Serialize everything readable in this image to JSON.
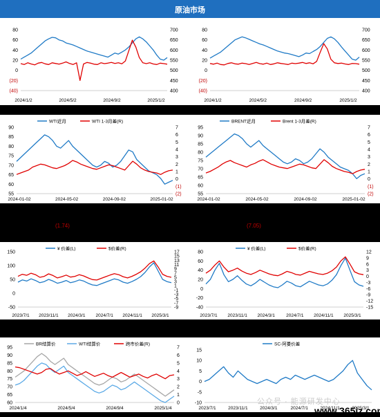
{
  "header": {
    "title": "原油市场"
  },
  "notes": [
    {
      "text": "(1.74)",
      "color": "#c00000"
    },
    {
      "text": "(7.05)",
      "color": "#c00000"
    }
  ],
  "watermark": {
    "text": "公众号 · 能源研发中心",
    "site": "www.365jz.com"
  },
  "chart_data": [
    {
      "id": "c1",
      "type": "line",
      "title": "",
      "x_ticks": [
        "2024/1/2",
        "2024/5/2",
        "2024/9/2",
        "2025/1/2"
      ],
      "ylim": [
        -40,
        80
      ],
      "y_ticks": [
        "80",
        "60",
        "40",
        "20",
        "0",
        "(20)",
        "(40)"
      ],
      "y2lim": [
        350,
        700
      ],
      "y2_ticks": [
        "700",
        "650",
        "600",
        "550",
        "500",
        "450",
        "400"
      ],
      "series": [
        {
          "name": "",
          "color": "#1f7ac6",
          "axis": "left",
          "values": [
            22,
            26,
            30,
            34,
            40,
            46,
            52,
            58,
            62,
            65,
            64,
            60,
            58,
            54,
            52,
            50,
            47,
            44,
            41,
            38,
            36,
            34,
            32,
            30,
            28,
            26,
            30,
            34,
            32,
            36,
            40,
            46,
            54,
            62,
            66,
            62,
            56,
            48,
            40,
            30,
            22,
            20,
            25
          ]
        },
        {
          "name": "",
          "color": "#e00000",
          "axis": "right",
          "values": [
            505,
            500,
            510,
            503,
            498,
            508,
            512,
            504,
            500,
            510,
            506,
            502,
            508,
            515,
            506,
            500,
            510,
            408,
            503,
            512,
            508,
            502,
            500,
            510,
            505,
            508,
            512,
            506,
            510,
            504,
            520,
            580,
            640,
            600,
            540,
            510,
            505,
            510,
            503,
            500,
            508,
            505,
            502
          ]
        }
      ]
    },
    {
      "id": "c2",
      "type": "line",
      "title": "",
      "x_ticks": [
        "2024/1/2",
        "2024/5/2",
        "2024/9/2",
        "2025/1/2"
      ],
      "ylim": [
        -40,
        80
      ],
      "y_ticks": [
        "80",
        "60",
        "40",
        "20",
        "0",
        "(20)",
        "(40)"
      ],
      "y2lim": [
        350,
        700
      ],
      "y2_ticks": [
        "700",
        "650",
        "600",
        "550",
        "500",
        "450",
        "400"
      ],
      "series": [
        {
          "name": "",
          "color": "#1f7ac6",
          "axis": "left",
          "values": [
            24,
            28,
            32,
            36,
            42,
            48,
            54,
            60,
            63,
            66,
            64,
            61,
            58,
            55,
            52,
            50,
            47,
            44,
            41,
            38,
            36,
            34,
            33,
            31,
            29,
            27,
            30,
            34,
            33,
            37,
            41,
            47,
            55,
            63,
            66,
            62,
            55,
            46,
            38,
            30,
            22,
            20,
            26
          ]
        },
        {
          "name": "",
          "color": "#e00000",
          "axis": "right",
          "values": [
            506,
            502,
            508,
            500,
            498,
            506,
            510,
            504,
            502,
            508,
            505,
            500,
            506,
            512,
            505,
            502,
            508,
            500,
            504,
            510,
            506,
            503,
            500,
            508,
            505,
            508,
            512,
            506,
            510,
            504,
            518,
            570,
            620,
            590,
            530,
            510,
            506,
            508,
            503,
            500,
            506,
            505,
            502
          ]
        }
      ]
    },
    {
      "id": "c3",
      "type": "line",
      "title": "",
      "x_ticks": [
        "2024-01-02",
        "2024-05-02",
        "2024-09-02",
        "2025-01-02"
      ],
      "ylim": [
        55,
        90
      ],
      "y_ticks": [
        "90",
        "85",
        "80",
        "75",
        "70",
        "65",
        "60",
        "55"
      ],
      "y2lim": [
        -2,
        7
      ],
      "y2_ticks": [
        "7",
        "6",
        "5",
        "4",
        "3",
        "2",
        "1",
        "0",
        "(1)",
        "(2)"
      ],
      "series": [
        {
          "name": "WTI近月",
          "color": "#1f7ac6",
          "axis": "left",
          "values": [
            72,
            74,
            76,
            78,
            80,
            82,
            84,
            86,
            85,
            83,
            80,
            79,
            81,
            83,
            80,
            78,
            76,
            74,
            72,
            70,
            69,
            70,
            72,
            71,
            69,
            70,
            72,
            75,
            78,
            77,
            73,
            71,
            69,
            67,
            66,
            65,
            63,
            60,
            61,
            62
          ]
        },
        {
          "name": "WTI 1-3月差(R)",
          "color": "#e00000",
          "axis": "right",
          "values": [
            0.6,
            0.8,
            1.0,
            1.2,
            1.6,
            1.8,
            2.0,
            1.9,
            1.7,
            1.5,
            1.4,
            1.6,
            1.8,
            2.1,
            2.5,
            2.3,
            2.0,
            1.8,
            1.6,
            1.4,
            1.3,
            1.5,
            1.7,
            1.9,
            1.8,
            1.6,
            1.4,
            1.2,
            1.8,
            2.4,
            2.0,
            1.5,
            1.2,
            1.0,
            0.9,
            0.8,
            0.6,
            0.9,
            1.1,
            1.2
          ]
        }
      ]
    },
    {
      "id": "c4",
      "type": "line",
      "title": "",
      "x_ticks": [
        "2024-01-02",
        "2024-05-02",
        "2024-09-02",
        "2025-01-02"
      ],
      "ylim": [
        55,
        95
      ],
      "y_ticks": [
        "95",
        "90",
        "85",
        "80",
        "75",
        "70",
        "65",
        "60",
        "55"
      ],
      "y2lim": [
        -2,
        7
      ],
      "y2_ticks": [
        "7",
        "6",
        "5",
        "4",
        "3",
        "2",
        "1",
        "0",
        "(1)",
        "(2)"
      ],
      "series": [
        {
          "name": "BRENT近月",
          "color": "#1f7ac6",
          "axis": "left",
          "values": [
            77,
            79,
            81,
            83,
            85,
            87,
            89,
            91,
            90,
            88,
            85,
            83,
            85,
            87,
            84,
            82,
            80,
            78,
            76,
            74,
            73,
            74,
            76,
            75,
            73,
            74,
            76,
            79,
            82,
            80,
            77,
            75,
            73,
            71,
            70,
            69,
            67,
            64,
            66,
            67
          ]
        },
        {
          "name": "Brent 1-3月差(R)",
          "color": "#e00000",
          "axis": "right",
          "values": [
            0.8,
            1.0,
            1.3,
            1.6,
            2.0,
            2.3,
            2.5,
            2.2,
            2.0,
            1.8,
            1.6,
            1.9,
            2.1,
            2.4,
            2.6,
            2.3,
            2.0,
            1.8,
            1.6,
            1.5,
            1.4,
            1.6,
            1.8,
            2.0,
            1.9,
            1.7,
            1.5,
            1.4,
            2.0,
            2.6,
            2.2,
            1.7,
            1.4,
            1.2,
            1.0,
            0.9,
            0.7,
            1.0,
            1.2,
            1.3
          ]
        }
      ]
    },
    {
      "id": "c5",
      "type": "line",
      "title": "",
      "x_ticks": [
        "2023/7/1",
        "2023/11/1",
        "2024/3/1",
        "2024/7/1",
        "2024/11/1",
        "2025/3/1"
      ],
      "ylim": [
        -50,
        150
      ],
      "y_ticks": [
        "150",
        "100",
        "50",
        "0",
        "-50"
      ],
      "y2lim": [
        -10,
        17
      ],
      "y2_ticks": [
        "17",
        "15",
        "13",
        "11",
        "9",
        "7",
        "5",
        "3",
        "1",
        "-1",
        "-3",
        "-5",
        "-7",
        "-9"
      ],
      "series": [
        {
          "name": "¥ 价差(L)",
          "color": "#1f7ac6",
          "axis": "left",
          "values": [
            40,
            48,
            44,
            52,
            46,
            38,
            42,
            50,
            44,
            36,
            40,
            46,
            38,
            42,
            48,
            44,
            36,
            30,
            28,
            34,
            40,
            46,
            52,
            48,
            40,
            36,
            42,
            50,
            60,
            75,
            95,
            110,
            80,
            50,
            42,
            38
          ]
        },
        {
          "name": "$价差(R)",
          "color": "#e00000",
          "axis": "right",
          "values": [
            5,
            6,
            5.5,
            6.5,
            5.8,
            4.5,
            5,
            6.2,
            5.4,
            4.2,
            4.8,
            5.6,
            4.6,
            5,
            5.8,
            5.2,
            4.2,
            3.4,
            3.2,
            4,
            4.8,
            5.6,
            6.3,
            5.8,
            4.8,
            4.2,
            5,
            6,
            7.2,
            9,
            11.2,
            12.5,
            9.5,
            6,
            5,
            4.5
          ]
        }
      ]
    },
    {
      "id": "c6",
      "type": "line",
      "title": "",
      "x_ticks": [
        "2023/7/1",
        "2023/11/1",
        "2024/3/1",
        "2024/7/1",
        "2024/11/1",
        "2025/3/1"
      ],
      "ylim": [
        -40,
        80
      ],
      "y_ticks": [
        "80",
        "60",
        "40",
        "20",
        "0",
        "-20",
        "-40"
      ],
      "y2lim": [
        -15,
        12
      ],
      "y2_ticks": [
        "12",
        "9",
        "6",
        "3",
        "0",
        "-3",
        "-6",
        "-9",
        "-12",
        "-15"
      ],
      "series": [
        {
          "name": "¥ 价差(L)",
          "color": "#1f7ac6",
          "axis": "left",
          "values": [
            10,
            20,
            40,
            55,
            30,
            15,
            20,
            28,
            18,
            10,
            6,
            12,
            20,
            14,
            8,
            4,
            2,
            8,
            16,
            12,
            6,
            4,
            10,
            16,
            12,
            8,
            6,
            10,
            18,
            30,
            50,
            66,
            40,
            15,
            8,
            5
          ]
        },
        {
          "name": "$价差(R)",
          "color": "#e00000",
          "axis": "right",
          "values": [
            1.5,
            3,
            5.5,
            7.5,
            4.5,
            2.2,
            3,
            4,
            2.6,
            1.5,
            0.9,
            1.8,
            3,
            2.1,
            1.2,
            0.6,
            0.3,
            1.2,
            2.4,
            1.8,
            0.9,
            0.6,
            1.5,
            2.4,
            1.8,
            1.2,
            0.9,
            1.5,
            2.7,
            4.5,
            7.5,
            9.5,
            6,
            2.2,
            1.2,
            0.8
          ]
        }
      ]
    },
    {
      "id": "c7",
      "type": "line",
      "title": "",
      "x_ticks": [
        "2024/1/4",
        "2024/5/4",
        "2024/9/4",
        "2025/1/4"
      ],
      "ylim": [
        60,
        95
      ],
      "y_ticks": [
        "95",
        "90",
        "85",
        "80",
        "75",
        "70",
        "65",
        "60"
      ],
      "y2lim": [
        0,
        7
      ],
      "y2_ticks": [
        "7",
        "6",
        "5",
        "4",
        "3",
        "2",
        "1",
        "0"
      ],
      "series": [
        {
          "name": "BR结算价",
          "color": "#a6a6a6",
          "axis": "left",
          "values": [
            76,
            78,
            80,
            83,
            86,
            89,
            91,
            89,
            86,
            84,
            86,
            88,
            84,
            82,
            80,
            78,
            76,
            74,
            72,
            71,
            72,
            74,
            76,
            75,
            73,
            74,
            76,
            78,
            76,
            74,
            72,
            70,
            68,
            66,
            64,
            66,
            68
          ]
        },
        {
          "name": "WTI结算价",
          "color": "#5aa9e6",
          "axis": "left",
          "values": [
            71,
            72,
            74,
            77,
            80,
            83,
            85,
            84,
            81,
            79,
            81,
            83,
            79,
            77,
            75,
            73,
            71,
            69,
            67,
            66,
            67,
            69,
            71,
            70,
            68,
            69,
            71,
            73,
            71,
            69,
            67,
            65,
            63,
            61,
            60,
            62,
            64
          ]
        },
        {
          "name": "跨市价差(R)",
          "color": "#e00000",
          "axis": "right",
          "values": [
            4.5,
            4.4,
            4.2,
            4.0,
            3.8,
            3.6,
            3.8,
            4.2,
            4.3,
            3.9,
            3.6,
            3.8,
            4.0,
            3.7,
            3.4,
            3.6,
            3.9,
            3.6,
            3.3,
            3.5,
            3.7,
            3.4,
            3.2,
            3.5,
            3.8,
            3.5,
            3.2,
            3.4,
            3.6,
            3.3,
            3.1,
            3.4,
            3.6,
            3.3,
            3.0,
            3.4,
            3.5
          ]
        }
      ]
    },
    {
      "id": "c8",
      "type": "line",
      "title": "",
      "x_ticks": [
        "2023/7/1",
        "2023/11/1",
        "2024/3/1",
        "2024/7/1",
        "2024/11/1",
        "2025/3/1"
      ],
      "ylim": [
        -10,
        15
      ],
      "y_ticks": [
        "15",
        "10",
        "5",
        "0",
        "-5",
        "-10"
      ],
      "series": [
        {
          "name": "SC-阿曼价差",
          "color": "#1f7ac6",
          "axis": "left",
          "values": [
            0,
            1,
            3,
            5,
            7,
            4,
            2,
            5,
            3,
            1,
            0,
            -1,
            0,
            1,
            0,
            -1,
            1,
            2,
            1,
            3,
            2,
            1,
            2,
            3,
            2,
            1,
            0,
            1,
            3,
            5,
            8,
            10,
            4,
            1,
            -2,
            -4
          ]
        }
      ]
    }
  ]
}
